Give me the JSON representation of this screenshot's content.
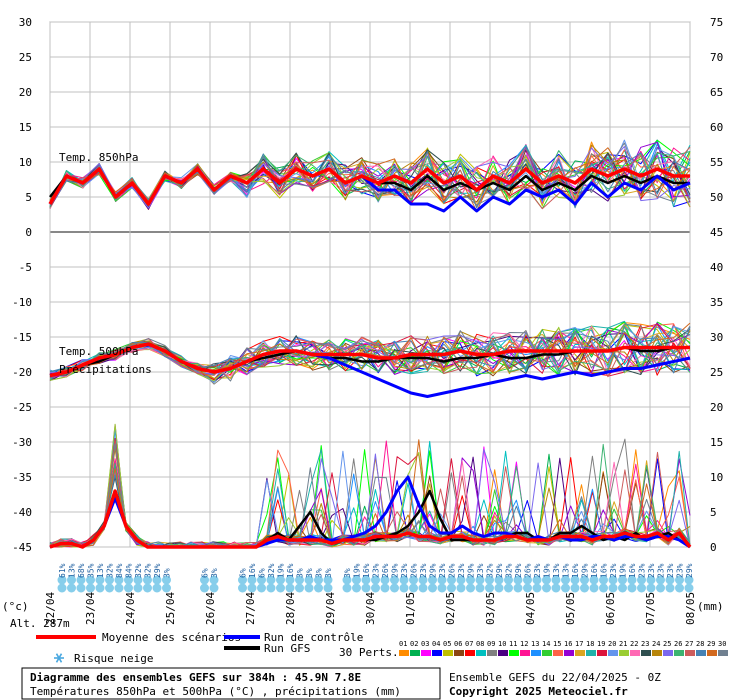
{
  "chart_data": {
    "type": "line",
    "left_axis_ticks": [
      "30",
      "25",
      "20",
      "15",
      "10",
      "5",
      "0",
      "-5",
      "-10",
      "-15",
      "-20",
      "-25",
      "-30",
      "-35",
      "-40",
      "-45"
    ],
    "right_axis_ticks": [
      "75",
      "70",
      "65",
      "60",
      "55",
      "50",
      "45",
      "40",
      "35",
      "30",
      "25",
      "20",
      "15",
      "10",
      "5",
      "0"
    ],
    "left_unit": "(°c)",
    "right_unit": "(mm)",
    "altitude_label": "Alt. 287m",
    "x_labels": [
      "22/04",
      "23/04",
      "24/04",
      "25/04",
      "26/04",
      "27/04",
      "28/04",
      "29/04",
      "30/04",
      "01/05",
      "02/05",
      "03/05",
      "04/05",
      "05/05",
      "06/05",
      "07/05",
      "08/05"
    ],
    "ylim_left": [
      -45,
      30
    ],
    "ylim_right": [
      0,
      75
    ],
    "series_labels": {
      "t850": "Temp. 850hPa",
      "t500": "Temp. 500hPa",
      "precip": "Précipitations"
    },
    "t850_mean": [
      4,
      8,
      7,
      9,
      5,
      7,
      4,
      8,
      7,
      9,
      6,
      8,
      7,
      9,
      7,
      9,
      8,
      9,
      7,
      8,
      7,
      8,
      7,
      9,
      7,
      8,
      6,
      8,
      7,
      9,
      7,
      8,
      7,
      9,
      8,
      9,
      8,
      9,
      8,
      8
    ],
    "t850_control": [
      4,
      8,
      7,
      9,
      5,
      7,
      4,
      8,
      7,
      9,
      6,
      8,
      7,
      9,
      7,
      9,
      8,
      9,
      7,
      8,
      6,
      6,
      4,
      4,
      3,
      5,
      3,
      5,
      4,
      6,
      5,
      6,
      4,
      7,
      5,
      7,
      6,
      8,
      6,
      7
    ],
    "t850_gfs": [
      5,
      8,
      7,
      9,
      5,
      7,
      4,
      8,
      7,
      9,
      6,
      8,
      7,
      9,
      7,
      9,
      8,
      9,
      7,
      8,
      7,
      7,
      6,
      8,
      6,
      7,
      6,
      7,
      6,
      8,
      6,
      7,
      6,
      8,
      7,
      8,
      7,
      8,
      7,
      7
    ],
    "t500_mean": [
      -20.5,
      -20,
      -19,
      -18,
      -17.5,
      -16.5,
      -16,
      -17,
      -18.5,
      -19.5,
      -20,
      -19.5,
      -18.5,
      -17.5,
      -17,
      -17,
      -17.5,
      -17.5,
      -17.5,
      -17.5,
      -18,
      -18,
      -17.5,
      -17.5,
      -17.5,
      -17,
      -17.5,
      -17.5,
      -17,
      -17,
      -17,
      -17,
      -17,
      -17,
      -17,
      -16.5,
      -16.5,
      -16.5,
      -16.5,
      -16.5
    ],
    "t500_control": [
      -20.5,
      -20,
      -19,
      -18,
      -17.5,
      -16.5,
      -16,
      -17,
      -18.5,
      -19.5,
      -20,
      -19.5,
      -18.5,
      -17.5,
      -17,
      -17,
      -17.5,
      -18,
      -19,
      -20,
      -21,
      -22,
      -23,
      -23.5,
      -23,
      -22.5,
      -22,
      -21.5,
      -21,
      -20.5,
      -21,
      -20.5,
      -20,
      -20.5,
      -20,
      -19.5,
      -19.5,
      -19,
      -18.5,
      -18
    ],
    "t500_gfs": [
      -20.5,
      -20,
      -19,
      -18.5,
      -17.5,
      -16.5,
      -16,
      -17,
      -18.5,
      -19.5,
      -20,
      -19.5,
      -18.5,
      -18,
      -17.5,
      -17,
      -17.5,
      -18,
      -18,
      -18.5,
      -18.5,
      -18,
      -18,
      -18,
      -18.5,
      -18,
      -18,
      -17.5,
      -18,
      -18,
      -17.5,
      -17.5,
      -17,
      -17,
      -17,
      -16.5,
      -17,
      -17,
      -16.5,
      -16.5
    ],
    "precip_mean": [
      0,
      0.5,
      0.5,
      0,
      1,
      3,
      8,
      3,
      1,
      0,
      0,
      0,
      0,
      0,
      0,
      0,
      0,
      0,
      0,
      0,
      1,
      1.5,
      1,
      1,
      1,
      1,
      0.5,
      1,
      1,
      1,
      1.5,
      1.5,
      1.5,
      2,
      1.5,
      1.5,
      1,
      1.5,
      1.5,
      1,
      1,
      1,
      1.5,
      1.5,
      1,
      1,
      1,
      1.5,
      1.5,
      1.5,
      1,
      1.5,
      1.5,
      2,
      1.5,
      1.5,
      2,
      1,
      2,
      0
    ],
    "precip_control": [
      0,
      0.5,
      0.5,
      0,
      1,
      3,
      7,
      3,
      1,
      0,
      0,
      0,
      0,
      0,
      0,
      0,
      0,
      0,
      0,
      0,
      0.5,
      1,
      1,
      1,
      1.5,
      1,
      1,
      1,
      1.5,
      2,
      3,
      5,
      8,
      10,
      6,
      3,
      2,
      2,
      3,
      2,
      1.5,
      2,
      2,
      1.5,
      1,
      1.5,
      1,
      1.5,
      1,
      1,
      1.5,
      1.5,
      1,
      1.5,
      1.5,
      1,
      1.5,
      1.5,
      1,
      0
    ],
    "precip_gfs": [
      0,
      0.5,
      0.5,
      0,
      1,
      3,
      7,
      3,
      1,
      0,
      0,
      0,
      0,
      0,
      0,
      0,
      0,
      0,
      0,
      0,
      1,
      2,
      1,
      3,
      5,
      2,
      0.5,
      1,
      1,
      1,
      1,
      1.5,
      2,
      3,
      5,
      8,
      4,
      1,
      1,
      1,
      1,
      1,
      1.5,
      2,
      2,
      1,
      1,
      2,
      2,
      3,
      2,
      1,
      1.5,
      1,
      2,
      1,
      1.5,
      2,
      1,
      0
    ],
    "snow_risk_runs": [
      {
        "start": 0,
        "labels": [
          "61%",
          "13%",
          "68%",
          "35%",
          "13%",
          "32%",
          "84%",
          "84%",
          "32%",
          "32%",
          "29%",
          "3%"
        ]
      },
      {
        "start": 15,
        "labels": [
          "6%",
          "3%"
        ]
      },
      {
        "start": 19,
        "labels": [
          "6%",
          "16%",
          "6%",
          "32%",
          "19%",
          "16%",
          "3%",
          "3%",
          "3%",
          "3%"
        ]
      },
      {
        "start": 30,
        "labels": [
          "3%",
          "19%",
          "16%",
          "23%",
          "26%",
          "29%",
          "23%",
          "26%",
          "23%",
          "29%",
          "23%",
          "26%",
          "23%",
          "29%",
          "23%",
          "32%",
          "29%",
          "32%",
          "29%",
          "26%",
          "23%",
          "19%",
          "13%",
          "13%",
          "16%",
          "29%",
          "16%",
          "16%",
          "23%",
          "19%",
          "16%",
          "23%",
          "23%",
          "23%",
          "23%",
          "23%",
          "29%"
        ]
      }
    ],
    "legend": {
      "mean": "Moyenne des scénarios",
      "control": "Run de contrôle",
      "gfs": "Run GFS",
      "snow": "Risque neige",
      "perts": "30 Perts.",
      "pert_numbers": [
        "01",
        "02",
        "03",
        "04",
        "05",
        "06",
        "07",
        "08",
        "09",
        "10",
        "11",
        "12",
        "13",
        "14",
        "15",
        "16",
        "17",
        "18",
        "19",
        "20",
        "21",
        "22",
        "23",
        "24",
        "25",
        "26",
        "27",
        "28",
        "29",
        "30"
      ],
      "pert_colors": [
        "#ff8c00",
        "#00b050",
        "#ff00ff",
        "#0000ff",
        "#c0c000",
        "#8b4513",
        "#ff0000",
        "#00c0c0",
        "#808080",
        "#4b0082",
        "#00ff00",
        "#ff1493",
        "#1e90ff",
        "#32cd32",
        "#ff6347",
        "#9400d3",
        "#daa520",
        "#20b2aa",
        "#dc143c",
        "#6495ed",
        "#9acd32",
        "#ff69b4",
        "#2f4f4f",
        "#b8860b",
        "#7b68ee",
        "#3cb371",
        "#cd5c5c",
        "#4682b4",
        "#d2691e",
        "#708090"
      ]
    },
    "colors": {
      "mean": "#ff0000",
      "control": "#0000ff",
      "gfs": "#000000",
      "snow": "#87ceeb",
      "grid": "#c0c0c0"
    }
  },
  "footer": {
    "title": "Diagramme des ensembles GEFS sur 384h : 45.9N 7.8E",
    "subtitle": "Températures 850hPa et 500hPa (°C) , précipitations (mm)",
    "run_info": "Ensemble GEFS du 22/04/2025 - 0Z",
    "copyright": "Copyright 2025 Meteociel.fr"
  }
}
